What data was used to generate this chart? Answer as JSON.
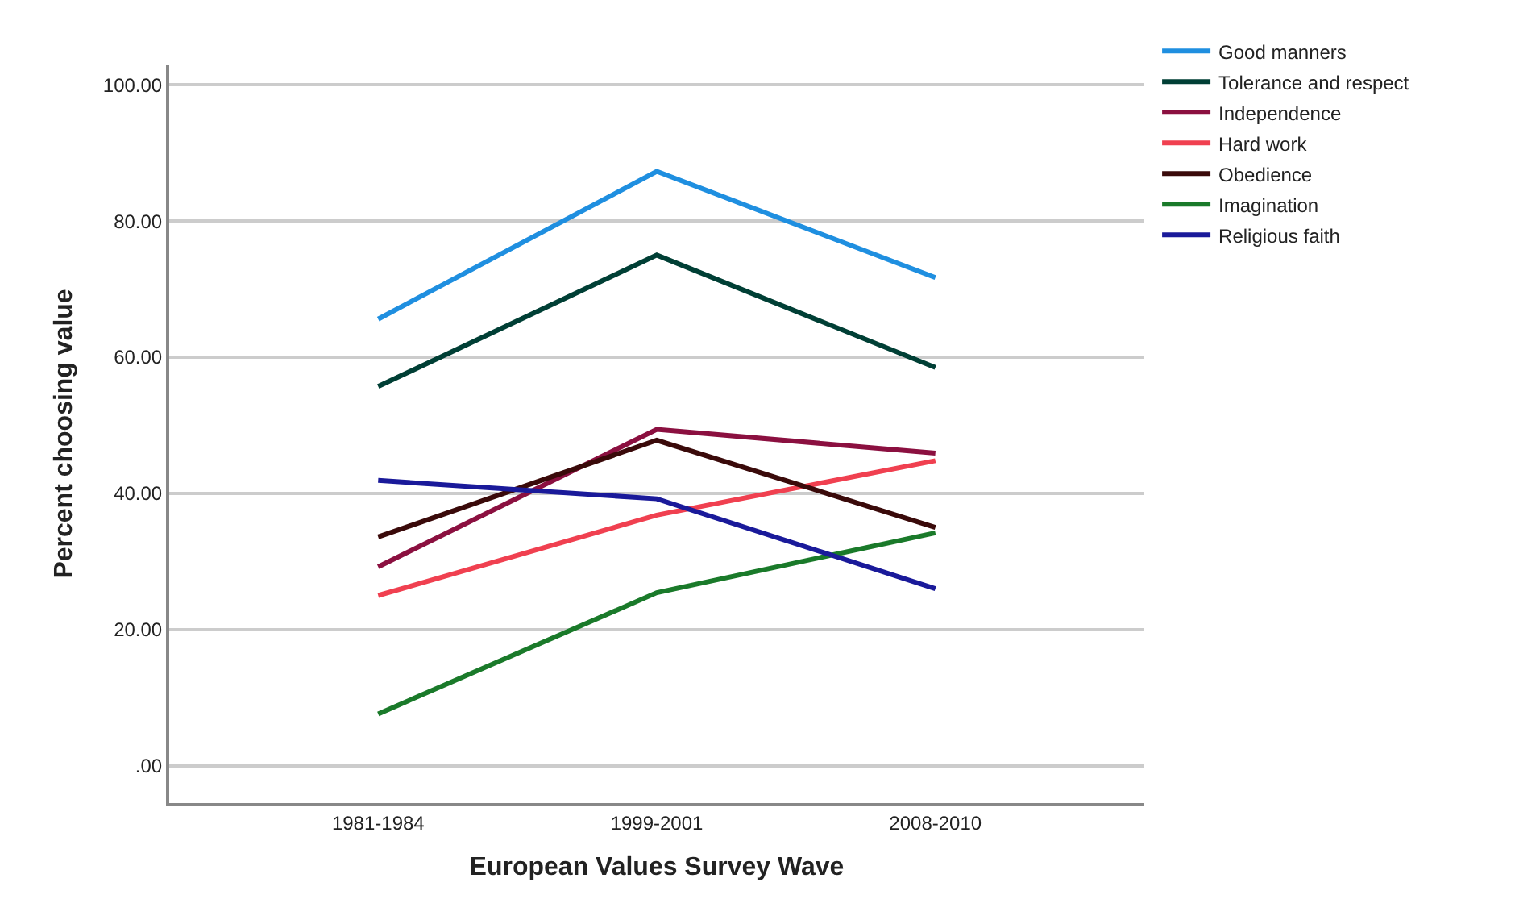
{
  "chart_data": {
    "type": "line",
    "xlabel": "European Values Survey Wave",
    "ylabel": "Percent choosing value",
    "categories": [
      "1981-1984",
      "1999-2001",
      "2008-2010"
    ],
    "series": [
      {
        "name": "Good manners",
        "color": "#1f8fe0",
        "values": [
          65.6,
          87.3,
          71.7
        ]
      },
      {
        "name": "Tolerance and respect",
        "color": "#003f35",
        "values": [
          55.7,
          75.0,
          58.5
        ]
      },
      {
        "name": "Independence",
        "color": "#8b1040",
        "values": [
          29.2,
          49.4,
          45.9
        ]
      },
      {
        "name": "Hard work",
        "color": "#f04050",
        "values": [
          25.0,
          36.8,
          44.8
        ]
      },
      {
        "name": "Obedience",
        "color": "#3a0a0a",
        "values": [
          33.6,
          47.8,
          35.0
        ]
      },
      {
        "name": "Imagination",
        "color": "#1a7a2a",
        "values": [
          7.6,
          25.4,
          34.2
        ]
      },
      {
        "name": "Religious faith",
        "color": "#1a1a9a",
        "values": [
          41.9,
          39.2,
          26.0
        ]
      }
    ],
    "ylim": [
      -5.5,
      103
    ],
    "yticks": [
      {
        "value": 0,
        "label": ".00"
      },
      {
        "value": 20,
        "label": "20.00"
      },
      {
        "value": 40,
        "label": "40.00"
      },
      {
        "value": 60,
        "label": "60.00"
      },
      {
        "value": 80,
        "label": "80.00"
      },
      {
        "value": 100,
        "label": "100.00"
      }
    ],
    "grid": "y",
    "legend": "top right",
    "marker": "none",
    "line_style": "solid"
  }
}
